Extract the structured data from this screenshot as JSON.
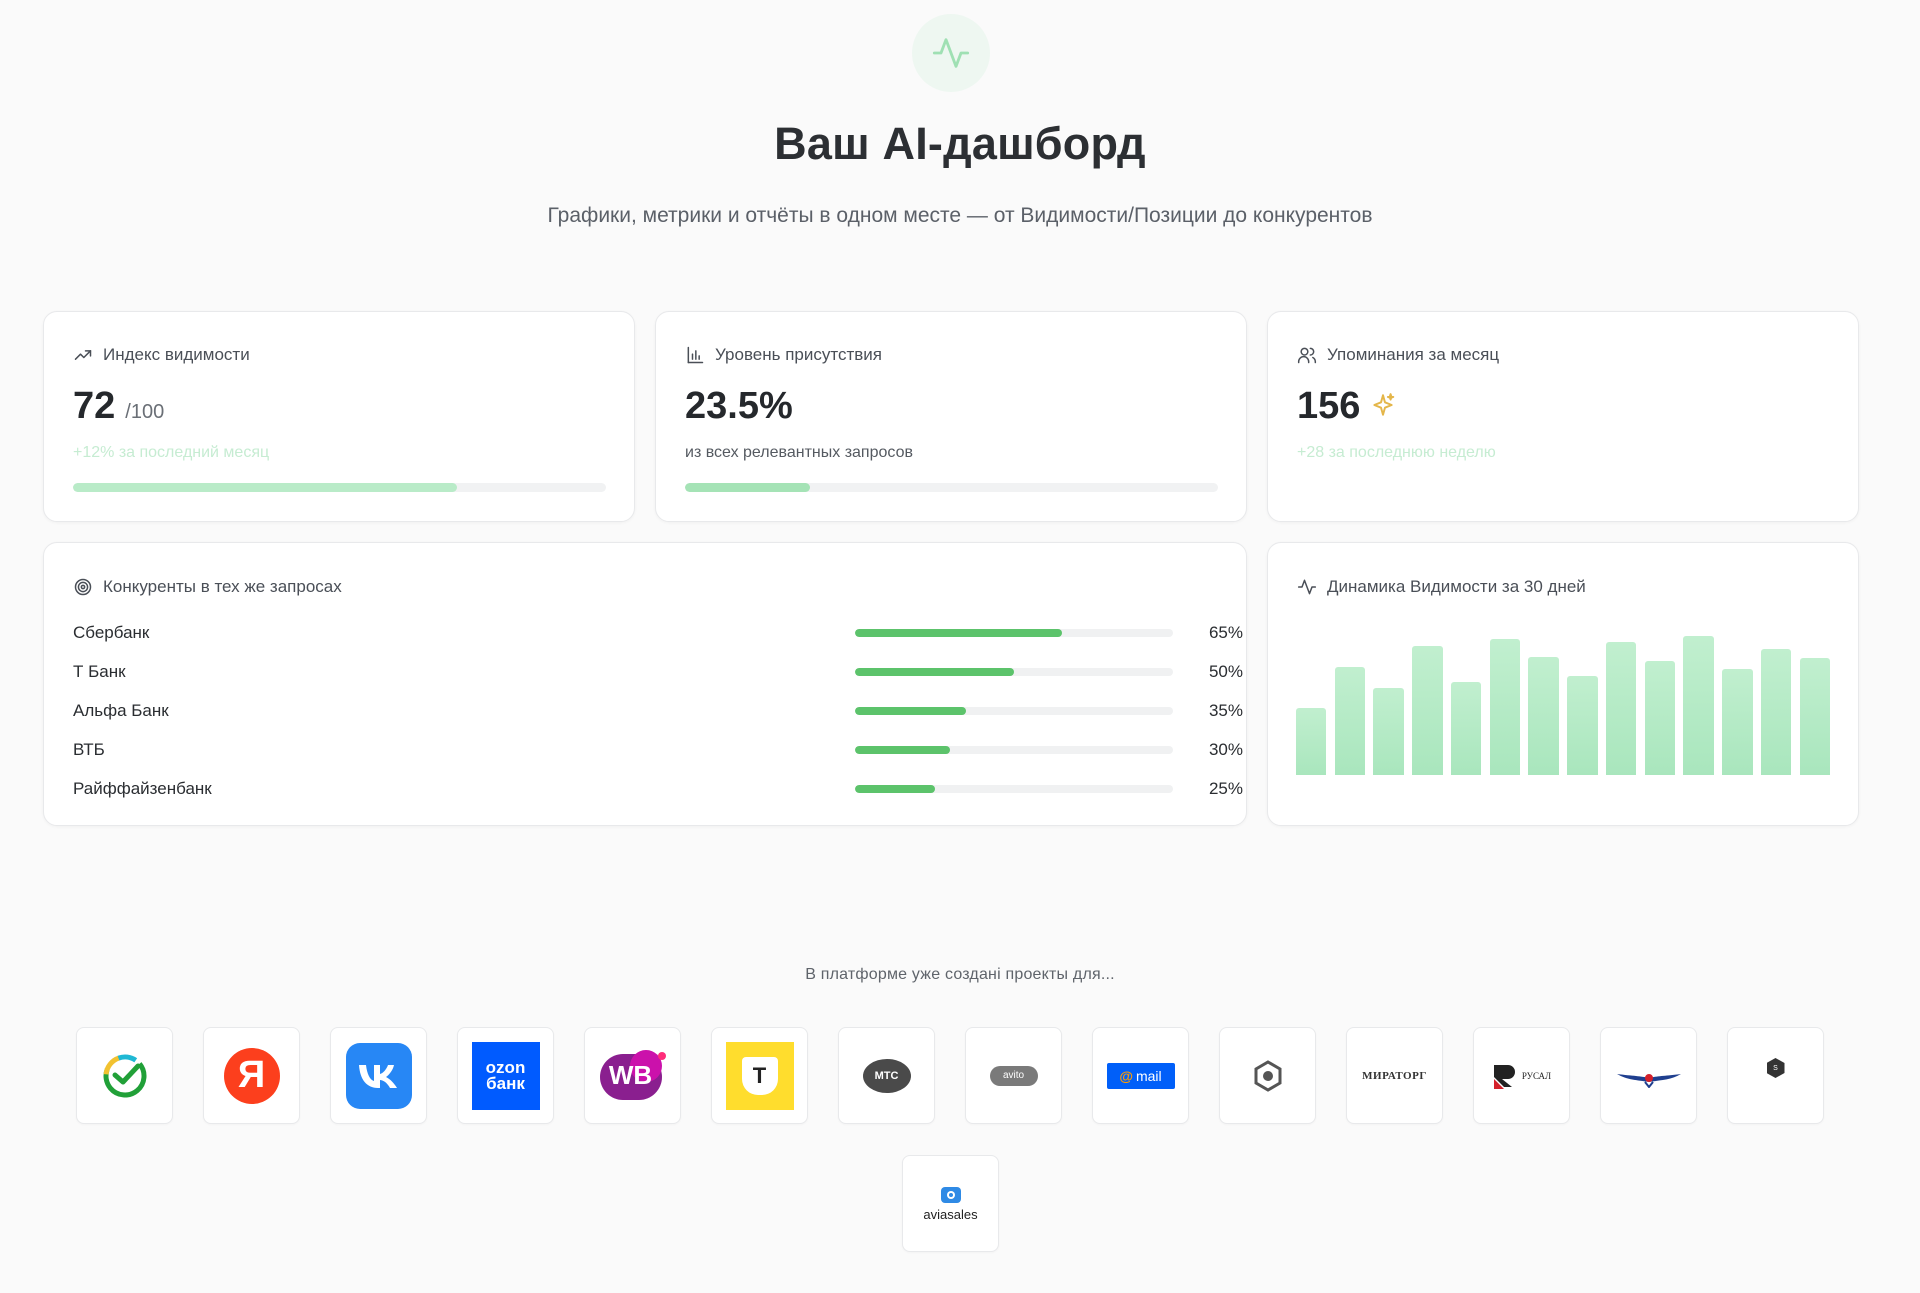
{
  "header": {
    "title": "Ваш AI-дашборд",
    "subtitle": "Графики, метрики и отчёты в одном месте — от Видимости/Позиции до конкурентов",
    "icon": "activity-icon",
    "accent_color": "#5cc36b"
  },
  "metrics": [
    {
      "icon": "trending-up-icon",
      "label": "Индекс видимости",
      "value": "72",
      "suffix": "/100",
      "note": "+12% за последний месяц",
      "progress": 0.72,
      "bar_color": "#b9ebc8"
    },
    {
      "icon": "bar-chart-icon",
      "label": "Уровень присутствия",
      "value": "23.5%",
      "note": "из всех релевантных запросов",
      "progress": 0.235,
      "bar_color": "#a5e3b6"
    },
    {
      "icon": "users-icon",
      "label": "Упоминания за месяц",
      "value": "156",
      "value_icon": "sparkles-icon",
      "note": "+28 за последнюю неделю"
    }
  ],
  "competitors": {
    "icon": "target-icon",
    "title": "Конкуренты в тех же запросах",
    "rows": [
      {
        "name": "Сбербанк",
        "percent": "65%",
        "share": 0.65
      },
      {
        "name": "Т Банк",
        "percent": "50%",
        "share": 0.5
      },
      {
        "name": "Альфа Банк",
        "percent": "35%",
        "share": 0.35
      },
      {
        "name": "ВТБ",
        "percent": "30%",
        "share": 0.3
      },
      {
        "name": "Райффайзенбанк",
        "percent": "25%",
        "share": 0.25
      }
    ]
  },
  "dynamics": {
    "icon": "activity-icon",
    "title": "Динамика Видимости за 30 дней"
  },
  "chart_data": {
    "type": "bar",
    "title": "Динамика Видимости за 30 дней",
    "values": [
      45,
      72,
      58,
      86,
      62,
      91,
      79,
      66,
      89,
      76,
      93,
      71,
      84,
      78
    ],
    "ylim": [
      0,
      100
    ],
    "grid": false,
    "legend": "none"
  },
  "clients": {
    "caption": "В платформе уже создані проекты для...",
    "logos": [
      {
        "name": "sber-logo"
      },
      {
        "name": "yandex-logo",
        "text": "Я"
      },
      {
        "name": "vk-logo"
      },
      {
        "name": "ozon-bank-logo",
        "text_top": "ozon",
        "text_bottom": "банк"
      },
      {
        "name": "wildberries-logo",
        "text": "WB"
      },
      {
        "name": "t-bank-logo",
        "text": "T"
      },
      {
        "name": "mts-logo",
        "text": "МТС"
      },
      {
        "name": "avito-logo",
        "text": "avito"
      },
      {
        "name": "mail-logo",
        "text": "mail"
      },
      {
        "name": "hexagon-logo"
      },
      {
        "name": "miratorg-logo",
        "text": "МИРАТОРГ"
      },
      {
        "name": "rusal-logo",
        "text": "РУСАЛ"
      },
      {
        "name": "aeroflot-logo"
      },
      {
        "name": "dark-hexagon-logo",
        "text": "S"
      },
      {
        "name": "aviasales-logo",
        "text": "aviasales"
      }
    ]
  }
}
